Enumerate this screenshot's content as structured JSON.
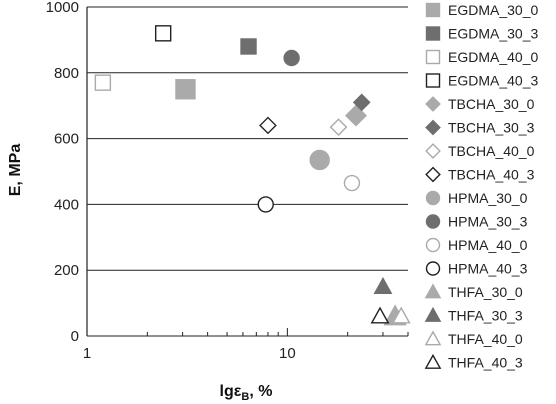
{
  "chart_data": {
    "type": "scatter",
    "xlabel": "lgε",
    "xlabel_sub": "B",
    "xlabel_unit": ", %",
    "ylabel": "E, MPa",
    "x_scale": "log",
    "xlim": [
      1,
      40
    ],
    "ylim": [
      0,
      1000
    ],
    "x_ticks": [
      1,
      10
    ],
    "x_tick_labels": [
      "1",
      "10"
    ],
    "y_ticks": [
      0,
      200,
      400,
      600,
      800,
      1000
    ],
    "grid": "horizontal",
    "legend_position": "right",
    "series": [
      {
        "name": "EGDMA_30_0",
        "marker": "square",
        "fill": "#aaaaaa",
        "stroke": "#aaaaaa",
        "points": [
          {
            "x": 3.1,
            "y": 750
          }
        ]
      },
      {
        "name": "EGDMA_30_3",
        "marker": "square",
        "fill": "#6e6e6e",
        "stroke": "#6e6e6e",
        "points": [
          {
            "x": 6.4,
            "y": 880
          }
        ]
      },
      {
        "name": "EGDMA_40_0",
        "marker": "square",
        "fill": "#ffffff",
        "stroke": "#aaaaaa",
        "points": [
          {
            "x": 1.2,
            "y": 770
          }
        ]
      },
      {
        "name": "EGDMA_40_3",
        "marker": "square",
        "fill": "#ffffff",
        "stroke": "#222222",
        "points": [
          {
            "x": 2.4,
            "y": 920
          }
        ]
      },
      {
        "name": "TBCHA_30_0",
        "marker": "diamond",
        "fill": "#aaaaaa",
        "stroke": "#aaaaaa",
        "points": [
          {
            "x": 22.0,
            "y": 670
          }
        ]
      },
      {
        "name": "TBCHA_30_3",
        "marker": "diamond",
        "fill": "#6e6e6e",
        "stroke": "#6e6e6e",
        "points": [
          {
            "x": 23.5,
            "y": 710
          }
        ]
      },
      {
        "name": "TBCHA_40_0",
        "marker": "diamond",
        "fill": "#ffffff",
        "stroke": "#aaaaaa",
        "points": [
          {
            "x": 18.0,
            "y": 635
          }
        ]
      },
      {
        "name": "TBCHA_40_3",
        "marker": "diamond",
        "fill": "#ffffff",
        "stroke": "#222222",
        "points": [
          {
            "x": 8.0,
            "y": 640
          }
        ]
      },
      {
        "name": "HPMA_30_0",
        "marker": "circle",
        "fill": "#aaaaaa",
        "stroke": "#aaaaaa",
        "points": [
          {
            "x": 14.5,
            "y": 535
          }
        ]
      },
      {
        "name": "HPMA_30_3",
        "marker": "circle",
        "fill": "#6e6e6e",
        "stroke": "#6e6e6e",
        "points": [
          {
            "x": 10.5,
            "y": 845
          }
        ]
      },
      {
        "name": "HPMA_40_0",
        "marker": "circle",
        "fill": "#ffffff",
        "stroke": "#aaaaaa",
        "points": [
          {
            "x": 21.0,
            "y": 465
          }
        ]
      },
      {
        "name": "HPMA_40_3",
        "marker": "circle",
        "fill": "#ffffff",
        "stroke": "#222222",
        "points": [
          {
            "x": 7.8,
            "y": 400
          }
        ]
      },
      {
        "name": "THFA_30_0",
        "marker": "triangle",
        "fill": "#aaaaaa",
        "stroke": "#aaaaaa",
        "points": [
          {
            "x": 34.5,
            "y": 60
          }
        ]
      },
      {
        "name": "THFA_30_3",
        "marker": "triangle",
        "fill": "#6e6e6e",
        "stroke": "#6e6e6e",
        "points": [
          {
            "x": 30.0,
            "y": 150
          }
        ]
      },
      {
        "name": "THFA_40_0",
        "marker": "triangle",
        "fill": "#ffffff",
        "stroke": "#aaaaaa",
        "points": [
          {
            "x": 37.0,
            "y": 60
          }
        ]
      },
      {
        "name": "THFA_40_3",
        "marker": "triangle",
        "fill": "#ffffff",
        "stroke": "#222222",
        "points": [
          {
            "x": 29.0,
            "y": 60
          }
        ]
      }
    ]
  }
}
